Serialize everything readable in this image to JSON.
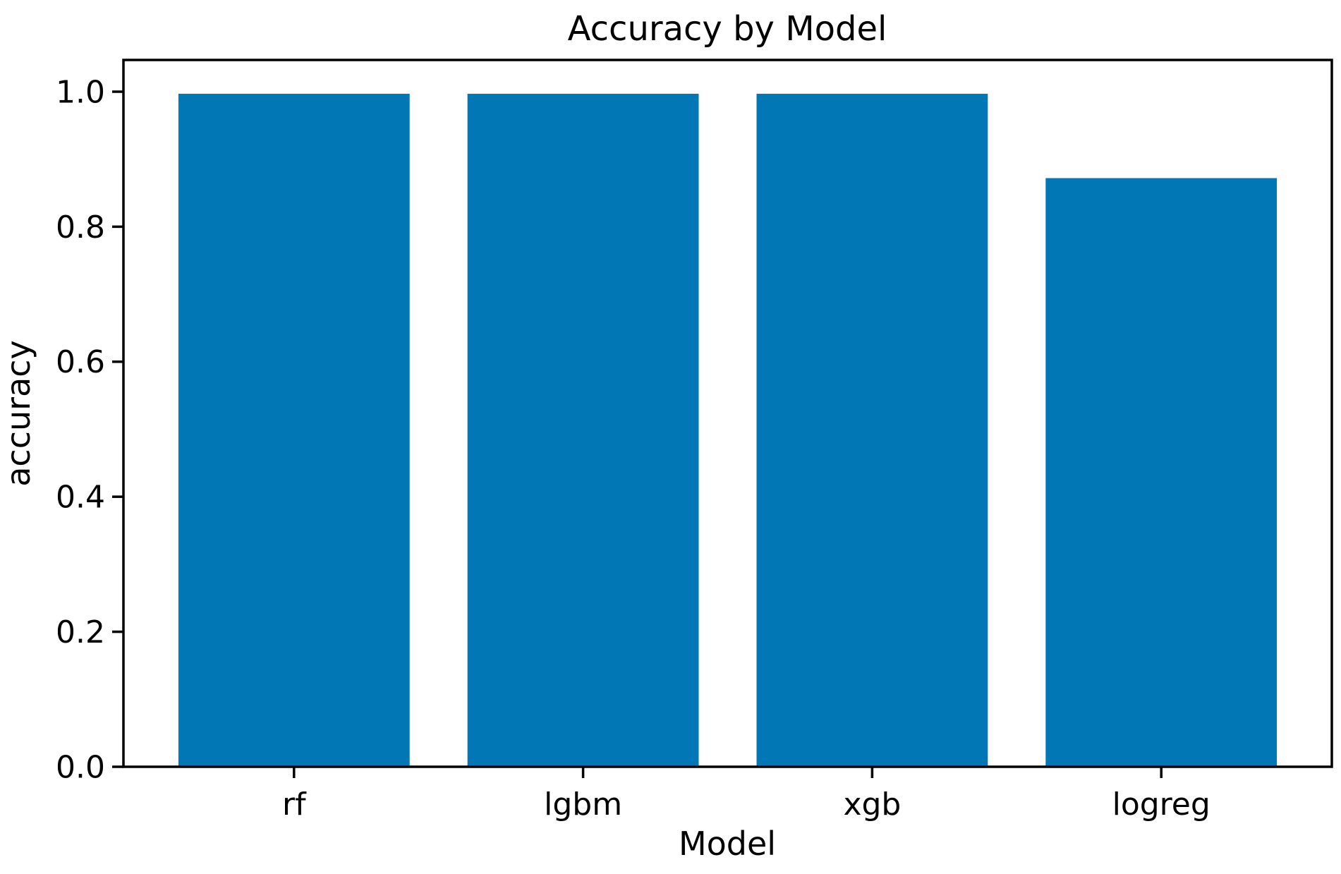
{
  "chart_data": {
    "type": "bar",
    "title": "Accuracy by Model",
    "xlabel": "Model",
    "ylabel": "accuracy",
    "categories": [
      "rf",
      "lgbm",
      "xgb",
      "logreg"
    ],
    "values": [
      0.997,
      0.997,
      0.997,
      0.872
    ],
    "ylim": [
      0,
      1.047
    ],
    "yticks": [
      0.0,
      0.2,
      0.4,
      0.6,
      0.8,
      1.0
    ],
    "ytick_labels": [
      "0.0",
      "0.2",
      "0.4",
      "0.6",
      "0.8",
      "1.0"
    ],
    "bar_width_fraction": 0.8,
    "bar_color": "#0277b5",
    "axis_color": "#000000",
    "text_color": "#000000",
    "background_color": "#ffffff",
    "grid": false,
    "legend": false
  }
}
